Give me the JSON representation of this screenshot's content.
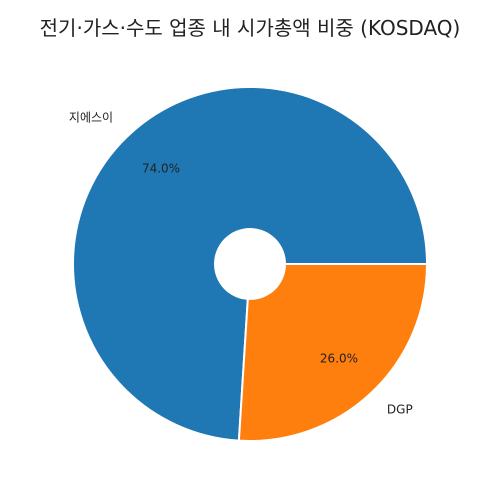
{
  "chart_data": {
    "type": "pie",
    "title": "전기·가스·수도 업종 내 시가총액 비중 (KOSDAQ)",
    "categories": [
      "지에스이",
      "DGP"
    ],
    "values": [
      74.0,
      26.0
    ],
    "data_labels": [
      "74.0%",
      "26.0%"
    ],
    "colors": [
      "#1f77b4",
      "#ff7f0e"
    ],
    "style": "donut",
    "start_angle_deg": 0,
    "direction": "counterclockwise",
    "legend": "none",
    "grid": false
  }
}
